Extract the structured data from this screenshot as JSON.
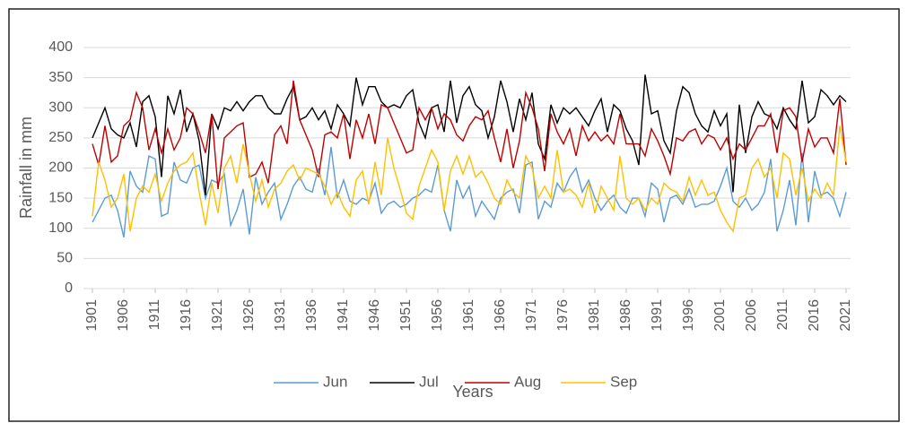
{
  "chart_data": {
    "type": "line",
    "x_label": "Years",
    "y_label": "Rainfall in mm",
    "x": [
      1901,
      1902,
      1903,
      1904,
      1905,
      1906,
      1907,
      1908,
      1909,
      1910,
      1911,
      1912,
      1913,
      1914,
      1915,
      1916,
      1917,
      1918,
      1919,
      1920,
      1921,
      1922,
      1923,
      1924,
      1925,
      1926,
      1927,
      1928,
      1929,
      1930,
      1931,
      1932,
      1933,
      1934,
      1935,
      1936,
      1937,
      1938,
      1939,
      1940,
      1941,
      1942,
      1943,
      1944,
      1945,
      1946,
      1947,
      1948,
      1949,
      1950,
      1951,
      1952,
      1953,
      1954,
      1955,
      1956,
      1957,
      1958,
      1959,
      1960,
      1961,
      1962,
      1963,
      1964,
      1965,
      1966,
      1967,
      1968,
      1969,
      1970,
      1971,
      1972,
      1973,
      1974,
      1975,
      1976,
      1977,
      1978,
      1979,
      1980,
      1981,
      1982,
      1983,
      1984,
      1985,
      1986,
      1987,
      1988,
      1989,
      1990,
      1991,
      1992,
      1993,
      1994,
      1995,
      1996,
      1997,
      1998,
      1999,
      2000,
      2001,
      2002,
      2003,
      2004,
      2005,
      2006,
      2007,
      2008,
      2009,
      2010,
      2011,
      2012,
      2013,
      2014,
      2015,
      2016,
      2017,
      2018,
      2019,
      2020,
      2021
    ],
    "series": [
      {
        "name": "Jun",
        "color": "#5b9bd5",
        "values": [
          110,
          130,
          150,
          155,
          130,
          85,
          195,
          170,
          160,
          220,
          215,
          120,
          125,
          210,
          180,
          175,
          200,
          205,
          150,
          180,
          175,
          190,
          105,
          130,
          165,
          90,
          185,
          140,
          160,
          175,
          115,
          140,
          170,
          185,
          165,
          160,
          200,
          155,
          235,
          150,
          180,
          145,
          140,
          150,
          145,
          175,
          125,
          140,
          145,
          135,
          140,
          150,
          155,
          165,
          160,
          205,
          130,
          95,
          180,
          150,
          170,
          120,
          145,
          130,
          115,
          150,
          160,
          165,
          125,
          205,
          210,
          115,
          145,
          135,
          175,
          160,
          185,
          200,
          160,
          180,
          150,
          130,
          145,
          155,
          135,
          125,
          150,
          150,
          120,
          175,
          165,
          110,
          150,
          155,
          140,
          165,
          135,
          140,
          140,
          145,
          170,
          200,
          145,
          135,
          150,
          130,
          140,
          160,
          215,
          95,
          130,
          180,
          105,
          225,
          110,
          195,
          155,
          160,
          150,
          120,
          160
        ]
      },
      {
        "name": "Jul",
        "color": "#000000",
        "values": [
          250,
          275,
          300,
          265,
          255,
          250,
          275,
          235,
          310,
          320,
          285,
          185,
          320,
          290,
          330,
          260,
          290,
          245,
          155,
          290,
          265,
          300,
          295,
          310,
          295,
          310,
          320,
          320,
          300,
          290,
          290,
          315,
          335,
          280,
          285,
          300,
          280,
          295,
          265,
          305,
          290,
          270,
          350,
          305,
          335,
          335,
          310,
          300,
          305,
          300,
          320,
          330,
          275,
          250,
          300,
          305,
          260,
          345,
          275,
          320,
          335,
          305,
          295,
          250,
          285,
          345,
          310,
          260,
          315,
          280,
          325,
          240,
          215,
          305,
          275,
          300,
          290,
          300,
          285,
          270,
          295,
          315,
          260,
          305,
          295,
          265,
          245,
          205,
          355,
          290,
          295,
          245,
          225,
          295,
          335,
          325,
          290,
          270,
          260,
          295,
          270,
          290,
          160,
          305,
          225,
          285,
          310,
          290,
          285,
          265,
          300,
          280,
          265,
          345,
          275,
          285,
          330,
          320,
          305,
          320,
          310
        ]
      },
      {
        "name": "Aug",
        "color": "#c00000",
        "values": [
          240,
          205,
          270,
          210,
          220,
          270,
          280,
          325,
          300,
          230,
          265,
          225,
          265,
          230,
          250,
          300,
          290,
          260,
          225,
          290,
          165,
          250,
          260,
          270,
          275,
          185,
          190,
          210,
          175,
          255,
          270,
          240,
          345,
          280,
          255,
          230,
          185,
          255,
          260,
          250,
          290,
          215,
          280,
          250,
          290,
          240,
          305,
          300,
          275,
          250,
          225,
          230,
          300,
          280,
          300,
          265,
          290,
          280,
          255,
          245,
          270,
          285,
          280,
          295,
          250,
          210,
          265,
          200,
          245,
          325,
          300,
          265,
          195,
          290,
          260,
          240,
          265,
          220,
          270,
          245,
          260,
          245,
          255,
          240,
          290,
          240,
          240,
          240,
          220,
          265,
          245,
          220,
          190,
          250,
          245,
          260,
          265,
          240,
          255,
          250,
          230,
          250,
          215,
          240,
          230,
          250,
          270,
          270,
          290,
          225,
          295,
          300,
          285,
          210,
          265,
          235,
          250,
          250,
          225,
          315,
          205
        ]
      },
      {
        "name": "Sep",
        "color": "#ffc000",
        "values": [
          120,
          210,
          180,
          135,
          150,
          190,
          95,
          150,
          170,
          160,
          190,
          145,
          175,
          195,
          205,
          210,
          225,
          160,
          105,
          175,
          125,
          200,
          220,
          175,
          240,
          190,
          145,
          180,
          135,
          165,
          175,
          195,
          205,
          180,
          200,
          195,
          190,
          170,
          140,
          160,
          135,
          120,
          180,
          195,
          140,
          210,
          155,
          250,
          200,
          165,
          125,
          115,
          170,
          200,
          230,
          210,
          130,
          195,
          220,
          190,
          220,
          185,
          195,
          175,
          150,
          140,
          180,
          160,
          150,
          220,
          200,
          150,
          170,
          150,
          230,
          160,
          165,
          155,
          135,
          175,
          125,
          170,
          150,
          130,
          220,
          150,
          140,
          150,
          130,
          150,
          140,
          175,
          165,
          160,
          145,
          185,
          155,
          180,
          155,
          160,
          130,
          110,
          95,
          150,
          155,
          200,
          215,
          185,
          200,
          150,
          225,
          215,
          155,
          200,
          145,
          165,
          150,
          175,
          155,
          270,
          210
        ]
      }
    ],
    "xlim": [
      1901,
      2021
    ],
    "xticks": [
      1901,
      1906,
      1911,
      1916,
      1921,
      1926,
      1931,
      1936,
      1941,
      1946,
      1951,
      1956,
      1961,
      1966,
      1971,
      1976,
      1981,
      1986,
      1991,
      1996,
      2001,
      2006,
      2011,
      2016,
      2021
    ],
    "ylim": [
      0,
      400
    ],
    "yticks": [
      0,
      50,
      100,
      150,
      200,
      250,
      300,
      350,
      400
    ],
    "grid": true,
    "legend": "bottom"
  }
}
